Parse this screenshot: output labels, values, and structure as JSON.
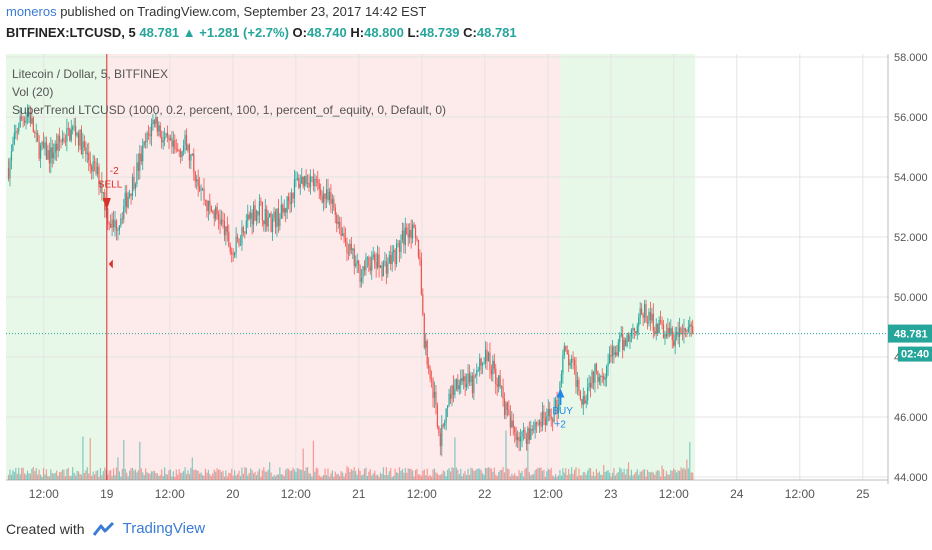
{
  "header": {
    "author": "moneros",
    "published": "published on TradingView.com, September 23, 2017 14:42 EST"
  },
  "ohlc": {
    "symbol": "BITFINEX:LTCUSD, 5",
    "last": "48.781",
    "change": "+1.281 (+2.7%)",
    "o_label": "O:",
    "o": "48.740",
    "h_label": "H:",
    "h": "48.800",
    "l_label": "L:",
    "l": "48.739",
    "c_label": "C:",
    "c": "48.781"
  },
  "legend": {
    "title": "Litecoin / Dollar, 5, BITFINEX",
    "vol": "Vol (20)",
    "strategy": "SuperTrend LTCUSD (1000, 0.2, percent, 100, 1, percent_of_equity, 0, Default, 0)"
  },
  "price_marker": {
    "price": "48.781",
    "countdown": "02:40"
  },
  "signals": {
    "sell": {
      "label": "SELL",
      "qty": "-2"
    },
    "buy": {
      "label": "BUY",
      "qty": "+2"
    }
  },
  "footer": {
    "created_with": "Created with",
    "brand": "TradingView"
  },
  "colors": {
    "up": "#26a69a",
    "down": "#ef5350",
    "bg_green": "#e8f8e8",
    "bg_red": "#fdeaea",
    "accent": "#3a7bd5"
  },
  "chart_data": {
    "type": "candlestick",
    "ylim": [
      43.9,
      58.1
    ],
    "yticks": [
      "58.000",
      "56.000",
      "54.000",
      "52.000",
      "50.000",
      "48.000",
      "46.000",
      "44.000"
    ],
    "ytick_values": [
      58,
      56,
      54,
      52,
      50,
      48,
      46,
      44
    ],
    "xticks": [
      "12:00",
      "19",
      "12:00",
      "20",
      "12:00",
      "21",
      "12:00",
      "22",
      "12:00",
      "23",
      "12:00",
      "24",
      "12:00",
      "25"
    ],
    "xtick_days": [
      0.5,
      1,
      1.5,
      2,
      2.5,
      3,
      3.5,
      4,
      4.5,
      5,
      5.5,
      6,
      6.5,
      7
    ],
    "xlim_days": [
      0.2,
      7.2
    ],
    "price_path": [
      {
        "t": 0.22,
        "p": 54.3
      },
      {
        "t": 0.3,
        "p": 55.8
      },
      {
        "t": 0.38,
        "p": 56.2
      },
      {
        "t": 0.45,
        "p": 55.0
      },
      {
        "t": 0.55,
        "p": 54.7
      },
      {
        "t": 0.65,
        "p": 55.3
      },
      {
        "t": 0.75,
        "p": 55.6
      },
      {
        "t": 0.85,
        "p": 54.6
      },
      {
        "t": 0.95,
        "p": 53.9
      },
      {
        "t": 1.0,
        "p": 52.8
      },
      {
        "t": 1.05,
        "p": 52.3
      },
      {
        "t": 1.1,
        "p": 52.6
      },
      {
        "t": 1.15,
        "p": 53.2
      },
      {
        "t": 1.22,
        "p": 54.0
      },
      {
        "t": 1.3,
        "p": 55.0
      },
      {
        "t": 1.38,
        "p": 56.0
      },
      {
        "t": 1.45,
        "p": 55.2
      },
      {
        "t": 1.55,
        "p": 54.8
      },
      {
        "t": 1.62,
        "p": 55.1
      },
      {
        "t": 1.72,
        "p": 54.0
      },
      {
        "t": 1.8,
        "p": 53.0
      },
      {
        "t": 1.9,
        "p": 52.6
      },
      {
        "t": 2.0,
        "p": 51.4
      },
      {
        "t": 2.1,
        "p": 52.5
      },
      {
        "t": 2.2,
        "p": 53.0
      },
      {
        "t": 2.3,
        "p": 52.5
      },
      {
        "t": 2.4,
        "p": 52.8
      },
      {
        "t": 2.5,
        "p": 53.8
      },
      {
        "t": 2.6,
        "p": 54.0
      },
      {
        "t": 2.7,
        "p": 53.5
      },
      {
        "t": 2.8,
        "p": 53.0
      },
      {
        "t": 2.9,
        "p": 51.8
      },
      {
        "t": 3.0,
        "p": 50.8
      },
      {
        "t": 3.1,
        "p": 51.2
      },
      {
        "t": 3.2,
        "p": 51.0
      },
      {
        "t": 3.3,
        "p": 51.5
      },
      {
        "t": 3.4,
        "p": 52.4
      },
      {
        "t": 3.48,
        "p": 51.5
      },
      {
        "t": 3.52,
        "p": 48.5
      },
      {
        "t": 3.6,
        "p": 46.6
      },
      {
        "t": 3.65,
        "p": 45.2
      },
      {
        "t": 3.7,
        "p": 46.5
      },
      {
        "t": 3.8,
        "p": 47.4
      },
      {
        "t": 3.9,
        "p": 47.0
      },
      {
        "t": 4.0,
        "p": 48.1
      },
      {
        "t": 4.1,
        "p": 47.3
      },
      {
        "t": 4.2,
        "p": 45.7
      },
      {
        "t": 4.3,
        "p": 45.3
      },
      {
        "t": 4.4,
        "p": 45.8
      },
      {
        "t": 4.5,
        "p": 45.9
      },
      {
        "t": 4.58,
        "p": 46.4
      },
      {
        "t": 4.62,
        "p": 48.2
      },
      {
        "t": 4.7,
        "p": 47.6
      },
      {
        "t": 4.78,
        "p": 46.6
      },
      {
        "t": 4.85,
        "p": 47.4
      },
      {
        "t": 4.95,
        "p": 47.6
      },
      {
        "t": 5.05,
        "p": 48.3
      },
      {
        "t": 5.15,
        "p": 48.7
      },
      {
        "t": 5.25,
        "p": 49.5
      },
      {
        "t": 5.35,
        "p": 49.1
      },
      {
        "t": 5.45,
        "p": 48.8
      },
      {
        "t": 5.5,
        "p": 48.6
      },
      {
        "t": 5.6,
        "p": 48.9
      },
      {
        "t": 5.65,
        "p": 48.781
      }
    ],
    "current_price": 48.781,
    "background_regions": [
      {
        "from": 0.2,
        "to": 1.0,
        "color": "green"
      },
      {
        "from": 1.0,
        "to": 4.6,
        "color": "red"
      },
      {
        "from": 4.6,
        "to": 5.67,
        "color": "green"
      }
    ],
    "signal_days": {
      "sell": 1.0,
      "buy": 4.6
    }
  }
}
